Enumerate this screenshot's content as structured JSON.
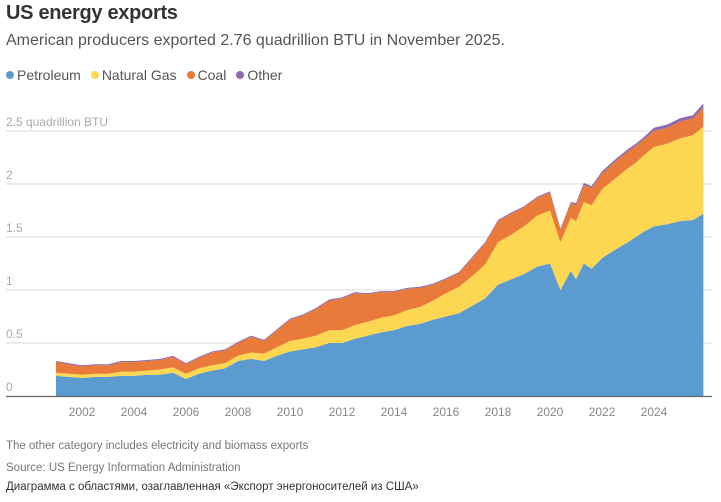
{
  "title": "US energy exports",
  "subtitle": "American producers exported 2.76 quadrillion BTU in November 2025.",
  "footnotes": {
    "note": "The other category includes electricity and biomass exports",
    "source": "Source: US Energy Information Administration",
    "alt": "Диаграмма с областями, озаглавленная «Экспорт энергоносителей из США»"
  },
  "chart_data": {
    "type": "area",
    "stacked": true,
    "title": "US energy exports",
    "subtitle": "American producers exported 2.76 quadrillion BTU in November 2025.",
    "ylabel": "quadrillion BTU",
    "xlabel": "",
    "ylim": [
      0,
      2.5
    ],
    "xlim": [
      2001.0,
      2025.9
    ],
    "yticks": [
      0,
      0.5,
      1,
      1.5,
      2,
      2.5
    ],
    "ytick_labels": [
      "0",
      "0.5",
      "1",
      "1.5",
      "2",
      "2.5 quadrillion BTU"
    ],
    "xticks": [
      2002,
      2004,
      2006,
      2008,
      2010,
      2012,
      2014,
      2016,
      2018,
      2020,
      2022,
      2024
    ],
    "xtick_labels": [
      "2002",
      "2004",
      "2006",
      "2008",
      "2010",
      "2012",
      "2014",
      "2016",
      "2018",
      "2020",
      "2022",
      "2024"
    ],
    "grid": true,
    "legend_position": "top-left",
    "x": [
      2001.0,
      2001.5,
      2002.0,
      2002.5,
      2003.0,
      2003.5,
      2004.0,
      2004.5,
      2005.0,
      2005.5,
      2006.0,
      2006.5,
      2007.0,
      2007.5,
      2008.0,
      2008.5,
      2009.0,
      2009.5,
      2010.0,
      2010.5,
      2011.0,
      2011.5,
      2012.0,
      2012.5,
      2013.0,
      2013.5,
      2014.0,
      2014.5,
      2015.0,
      2015.5,
      2016.0,
      2016.5,
      2017.0,
      2017.5,
      2018.0,
      2018.5,
      2019.0,
      2019.5,
      2020.0,
      2020.4,
      2020.8,
      2021.0,
      2021.3,
      2021.6,
      2022.0,
      2022.5,
      2023.0,
      2023.3,
      2023.6,
      2024.0,
      2024.5,
      2025.0,
      2025.5,
      2025.9
    ],
    "series": [
      {
        "name": "Petroleum",
        "color": "#5b9bcf",
        "values": [
          0.19,
          0.18,
          0.17,
          0.18,
          0.18,
          0.19,
          0.19,
          0.2,
          0.2,
          0.22,
          0.16,
          0.21,
          0.24,
          0.26,
          0.33,
          0.35,
          0.33,
          0.38,
          0.42,
          0.44,
          0.46,
          0.5,
          0.5,
          0.54,
          0.57,
          0.6,
          0.62,
          0.66,
          0.68,
          0.72,
          0.75,
          0.78,
          0.85,
          0.92,
          1.05,
          1.1,
          1.15,
          1.22,
          1.25,
          1.0,
          1.18,
          1.1,
          1.25,
          1.2,
          1.3,
          1.38,
          1.45,
          1.5,
          1.55,
          1.6,
          1.62,
          1.65,
          1.66,
          1.72
        ]
      },
      {
        "name": "Natural Gas",
        "color": "#fdd752",
        "values": [
          0.03,
          0.03,
          0.03,
          0.03,
          0.03,
          0.04,
          0.04,
          0.04,
          0.05,
          0.05,
          0.05,
          0.05,
          0.05,
          0.05,
          0.05,
          0.06,
          0.07,
          0.08,
          0.1,
          0.1,
          0.11,
          0.12,
          0.12,
          0.13,
          0.13,
          0.14,
          0.14,
          0.15,
          0.16,
          0.18,
          0.22,
          0.25,
          0.28,
          0.32,
          0.4,
          0.42,
          0.45,
          0.48,
          0.5,
          0.45,
          0.5,
          0.55,
          0.58,
          0.6,
          0.65,
          0.67,
          0.7,
          0.7,
          0.72,
          0.75,
          0.76,
          0.78,
          0.8,
          0.82
        ]
      },
      {
        "name": "Coal",
        "color": "#e97a3a",
        "values": [
          0.1,
          0.09,
          0.08,
          0.08,
          0.08,
          0.09,
          0.09,
          0.09,
          0.09,
          0.1,
          0.09,
          0.1,
          0.12,
          0.12,
          0.12,
          0.15,
          0.12,
          0.16,
          0.2,
          0.22,
          0.25,
          0.28,
          0.3,
          0.3,
          0.26,
          0.24,
          0.22,
          0.2,
          0.18,
          0.15,
          0.13,
          0.13,
          0.17,
          0.2,
          0.2,
          0.2,
          0.18,
          0.17,
          0.17,
          0.12,
          0.14,
          0.15,
          0.16,
          0.16,
          0.15,
          0.16,
          0.16,
          0.16,
          0.15,
          0.15,
          0.15,
          0.16,
          0.16,
          0.18
        ]
      },
      {
        "name": "Other",
        "color": "#8c6bb1",
        "values": [
          0.01,
          0.01,
          0.01,
          0.01,
          0.01,
          0.01,
          0.01,
          0.01,
          0.01,
          0.01,
          0.01,
          0.01,
          0.01,
          0.01,
          0.01,
          0.01,
          0.01,
          0.01,
          0.01,
          0.01,
          0.01,
          0.01,
          0.01,
          0.01,
          0.01,
          0.01,
          0.01,
          0.01,
          0.01,
          0.01,
          0.01,
          0.01,
          0.01,
          0.01,
          0.01,
          0.01,
          0.01,
          0.01,
          0.01,
          0.01,
          0.01,
          0.02,
          0.02,
          0.02,
          0.02,
          0.02,
          0.02,
          0.02,
          0.02,
          0.03,
          0.03,
          0.03,
          0.03,
          0.04
        ]
      }
    ]
  }
}
